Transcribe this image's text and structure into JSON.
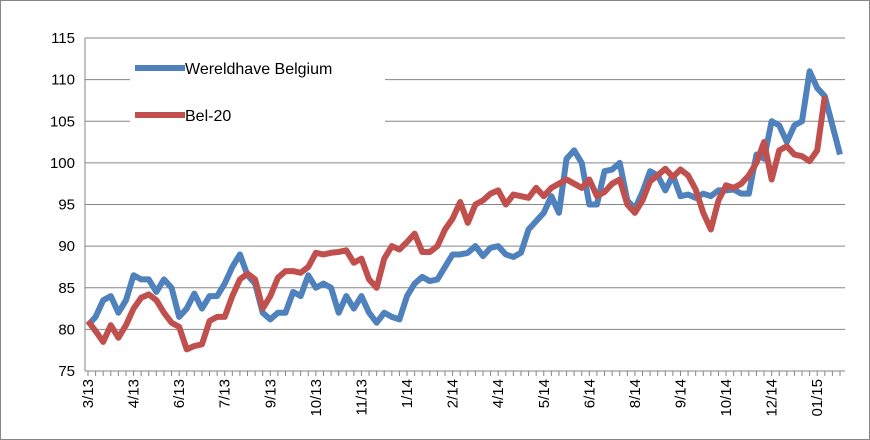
{
  "chart_data": {
    "type": "line",
    "categories": [
      "3/13",
      null,
      null,
      null,
      null,
      null,
      "4/13",
      null,
      null,
      null,
      null,
      null,
      "6/13",
      null,
      null,
      null,
      null,
      null,
      "7/13",
      null,
      null,
      null,
      null,
      null,
      "9/13",
      null,
      null,
      null,
      null,
      null,
      "10/13",
      null,
      null,
      null,
      null,
      null,
      "11/13",
      null,
      null,
      null,
      null,
      null,
      "1/14",
      null,
      null,
      null,
      null,
      null,
      "2/14",
      null,
      null,
      null,
      null,
      null,
      "4/14",
      null,
      null,
      null,
      null,
      null,
      "5/14",
      null,
      null,
      null,
      null,
      null,
      "6/14",
      null,
      null,
      null,
      null,
      null,
      "8/14",
      null,
      null,
      null,
      null,
      null,
      "9/14",
      null,
      null,
      null,
      null,
      null,
      "10/14",
      null,
      null,
      null,
      null,
      null,
      "12/14",
      null,
      null,
      null,
      null,
      null,
      "01/15",
      null,
      null,
      null
    ],
    "series": [
      {
        "name": "Wereldhave Belgium",
        "color": "#4f81bd",
        "values": [
          80.5,
          81.5,
          83.5,
          84,
          82,
          83.5,
          86.5,
          86,
          86,
          84.5,
          86,
          85,
          81.5,
          82.5,
          84.3,
          82.5,
          84,
          84,
          85.5,
          87.5,
          89,
          86.5,
          85.5,
          82,
          81.2,
          82,
          82,
          84.5,
          84,
          86.5,
          85,
          85.5,
          85,
          82,
          84,
          82.5,
          84,
          82,
          80.8,
          82,
          81.5,
          81.2,
          84,
          85.5,
          86.3,
          85.8,
          86,
          87.5,
          89,
          89,
          89.2,
          90,
          88.8,
          89.8,
          90,
          89,
          88.7,
          89.2,
          92,
          93,
          94,
          96,
          94,
          100.5,
          101.5,
          100,
          95,
          95,
          99,
          99.2,
          100,
          95.5,
          94.5,
          96.5,
          99,
          98.5,
          96.7,
          98.5,
          96,
          96.2,
          95.8,
          96.3,
          96,
          96.7,
          96.7,
          96.8,
          96.3,
          96.3,
          101,
          100.5,
          105,
          104.5,
          102.5,
          104.5,
          105,
          111,
          109,
          108,
          104.5,
          101
        ]
      },
      {
        "name": "Bel-20",
        "color": "#c0504d",
        "values": [
          81,
          79.8,
          78.5,
          80.5,
          79,
          80.5,
          82.5,
          83.8,
          84.2,
          83.5,
          82,
          80.8,
          80.3,
          77.6,
          78,
          78.2,
          81,
          81.5,
          81.5,
          84,
          86,
          86.7,
          86,
          82.5,
          84,
          86.2,
          87,
          87,
          86.8,
          87.5,
          89.2,
          89,
          89.2,
          89.3,
          89.5,
          88,
          88.5,
          86,
          85,
          88.5,
          90,
          89.6,
          90.5,
          91.5,
          89.3,
          89.3,
          90,
          92,
          93.3,
          95.3,
          92.8,
          95,
          95.5,
          96.3,
          96.7,
          95,
          96.2,
          96,
          95.8,
          97,
          96,
          97,
          97.5,
          98,
          97.5,
          97,
          98,
          96,
          96.5,
          97.5,
          98,
          95,
          94,
          95.5,
          97.8,
          98.5,
          99.3,
          98.3,
          99.2,
          98.5,
          96.8,
          94,
          92,
          95.5,
          97.3,
          97,
          97.5,
          98.5,
          100,
          102.5,
          98,
          101.5,
          102,
          101,
          100.8,
          100.2,
          101.5,
          108,
          null,
          null
        ]
      }
    ],
    "ylim": [
      75,
      115
    ],
    "yticks": [
      75,
      80,
      85,
      90,
      95,
      100,
      105,
      110,
      115
    ],
    "grid": true
  }
}
